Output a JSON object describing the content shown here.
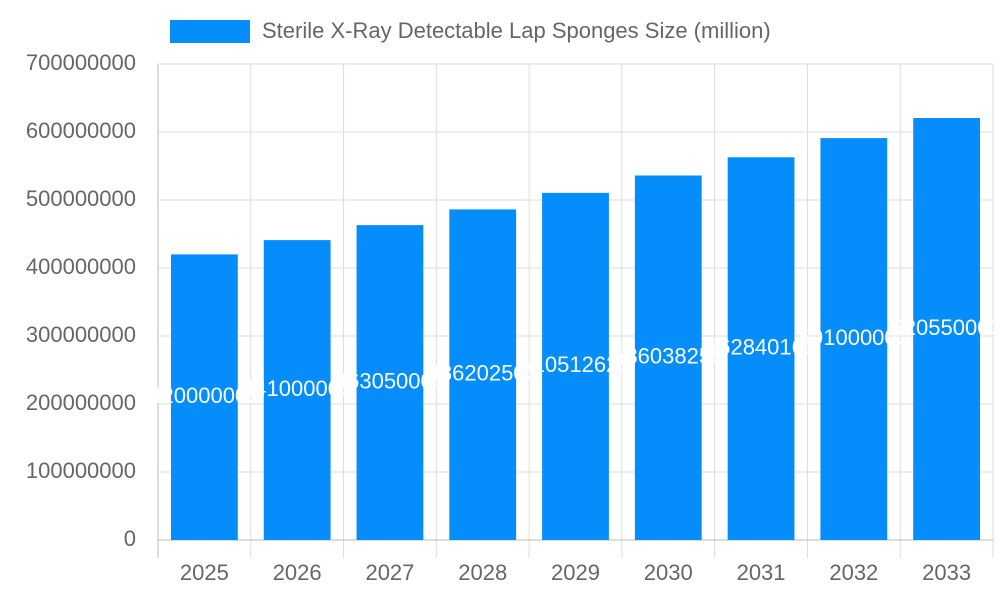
{
  "chart_data": {
    "type": "bar",
    "categories": [
      "2025",
      "2026",
      "2027",
      "2028",
      "2029",
      "2030",
      "2031",
      "2032",
      "2033"
    ],
    "series": [
      {
        "name": "Sterile X-Ray Detectable Lap Sponges Size (million)",
        "color": "#058dfc",
        "values": [
          420000000,
          441000000,
          463050000,
          486202500,
          510512625,
          536038256,
          562840169,
          591000000,
          620550000
        ]
      }
    ],
    "ylim": [
      0,
      700000000
    ],
    "yticks": [
      0,
      100000000,
      200000000,
      300000000,
      400000000,
      500000000,
      600000000,
      700000000
    ],
    "grid": true
  }
}
